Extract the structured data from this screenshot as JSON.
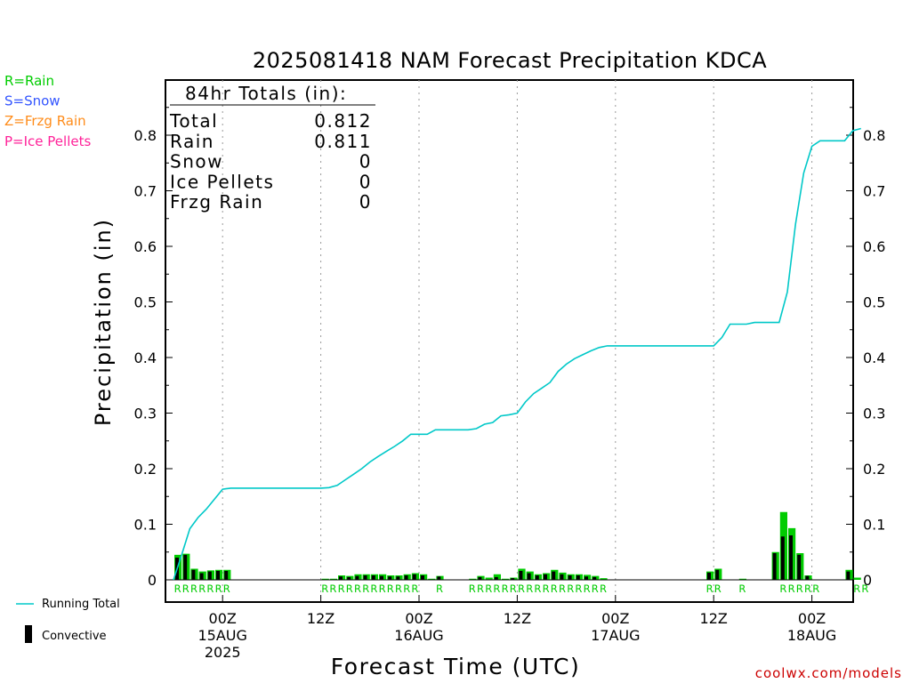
{
  "chart_data": {
    "type": "bar",
    "title": "2025081418 NAM Forecast Precipitation KDCA",
    "xlabel": "Forecast Time (UTC)",
    "ylabel": "Precipitation (in)",
    "ylim": [
      0,
      0.9
    ],
    "y_ticks": [
      "0",
      "0.1",
      "0.2",
      "0.3",
      "0.4",
      "0.5",
      "0.6",
      "0.7",
      "0.8"
    ],
    "x_unit": "forecast hour",
    "xlim": [
      0,
      84
    ],
    "x_ticks": [
      {
        "hour": 6,
        "lines": [
          "00Z",
          "15AUG",
          "2025"
        ]
      },
      {
        "hour": 18,
        "lines": [
          "12Z"
        ]
      },
      {
        "hour": 30,
        "lines": [
          "00Z",
          "16AUG"
        ]
      },
      {
        "hour": 42,
        "lines": [
          "12Z"
        ]
      },
      {
        "hour": 54,
        "lines": [
          "00Z",
          "17AUG"
        ]
      },
      {
        "hour": 66,
        "lines": [
          "12Z"
        ]
      },
      {
        "hour": 78,
        "lines": [
          "00Z",
          "18AUG"
        ]
      }
    ],
    "legend_types": [
      {
        "label": "R=Rain",
        "color": "#00cc00"
      },
      {
        "label": "S=Snow",
        "color": "#3355ff"
      },
      {
        "label": "Z=Frzg Rain",
        "color": "#ff8c1a"
      },
      {
        "label": "P=Ice Pellets",
        "color": "#ff2299"
      }
    ],
    "legend_lines": [
      {
        "label": "Running Total",
        "color": "#00c8c8"
      },
      {
        "label": "Convective",
        "color": "#000000"
      }
    ],
    "totals_box": {
      "heading": "84hr Totals (in):",
      "rows": [
        {
          "label": "Total",
          "value": "0.812"
        },
        {
          "label": "Rain",
          "value": "0.811"
        },
        {
          "label": "Snow",
          "value": "0"
        },
        {
          "label": "Ice Pellets",
          "value": "0"
        },
        {
          "label": "Frzg Rain",
          "value": "0"
        }
      ]
    },
    "series": [
      {
        "name": "Running Total",
        "kind": "line",
        "x": [
          0,
          1,
          2,
          3,
          4,
          5,
          6,
          7,
          8,
          9,
          12,
          15,
          17,
          18,
          19,
          20,
          21,
          22,
          23,
          24,
          25,
          26,
          27,
          28,
          29,
          30,
          31,
          32,
          33,
          34,
          35,
          36,
          37,
          38,
          39,
          40,
          41,
          42,
          43,
          44,
          45,
          46,
          47,
          48,
          49,
          50,
          51,
          52,
          53,
          54,
          55,
          56,
          57,
          58,
          59,
          60,
          61,
          62,
          63,
          64,
          65,
          66,
          67,
          68,
          69,
          70,
          71,
          72,
          73,
          74,
          75,
          76,
          77,
          78,
          79,
          80,
          81,
          82,
          83,
          84
        ],
        "values": [
          0,
          0.045,
          0.092,
          0.112,
          0.127,
          0.145,
          0.163,
          0.165,
          0.165,
          0.165,
          0.165,
          0.165,
          0.165,
          0.165,
          0.166,
          0.17,
          0.18,
          0.19,
          0.2,
          0.212,
          0.222,
          0.231,
          0.24,
          0.25,
          0.262,
          0.262,
          0.262,
          0.27,
          0.27,
          0.27,
          0.27,
          0.27,
          0.272,
          0.28,
          0.283,
          0.295,
          0.297,
          0.3,
          0.32,
          0.335,
          0.345,
          0.355,
          0.375,
          0.388,
          0.398,
          0.405,
          0.412,
          0.418,
          0.421,
          0.421,
          0.421,
          0.421,
          0.421,
          0.421,
          0.421,
          0.421,
          0.421,
          0.421,
          0.421,
          0.421,
          0.421,
          0.421,
          0.436,
          0.46,
          0.46,
          0.46,
          0.463,
          0.463,
          0.463,
          0.463,
          0.518,
          0.64,
          0.732,
          0.78,
          0.79,
          0.79,
          0.79,
          0.79,
          0.808,
          0.812
        ]
      },
      {
        "name": "Rain",
        "kind": "bar",
        "x": [
          1,
          2,
          3,
          4,
          5,
          6,
          7,
          19,
          20,
          21,
          22,
          23,
          24,
          25,
          26,
          27,
          28,
          29,
          30,
          31,
          32,
          33,
          37,
          38,
          39,
          40,
          41,
          42,
          43,
          44,
          45,
          46,
          47,
          48,
          49,
          50,
          51,
          52,
          53,
          66,
          67,
          70,
          74,
          75,
          76,
          77,
          78,
          83,
          84
        ],
        "values": [
          0.045,
          0.047,
          0.02,
          0.015,
          0.017,
          0.018,
          0.018,
          0.002,
          0.002,
          0.008,
          0.007,
          0.01,
          0.01,
          0.01,
          0.01,
          0.008,
          0.008,
          0.01,
          0.012,
          0.01,
          0.002,
          0.007,
          0.002,
          0.007,
          0.004,
          0.01,
          0.002,
          0.004,
          0.02,
          0.015,
          0.01,
          0.012,
          0.018,
          0.013,
          0.01,
          0.01,
          0.009,
          0.007,
          0.003,
          0.015,
          0.02,
          0.002,
          0.05,
          0.122,
          0.093,
          0.048,
          0.008,
          0.018,
          0.004
        ]
      },
      {
        "name": "Convective",
        "kind": "bar",
        "x": [
          1,
          2,
          3,
          4,
          5,
          6,
          7,
          21,
          22,
          23,
          24,
          25,
          26,
          27,
          28,
          29,
          30,
          31,
          33,
          38,
          40,
          42,
          43,
          44,
          45,
          46,
          47,
          48,
          49,
          50,
          51,
          52,
          66,
          67,
          74,
          75,
          76,
          77,
          78,
          83
        ],
        "values": [
          0.04,
          0.045,
          0.018,
          0.012,
          0.015,
          0.016,
          0.016,
          0.006,
          0.005,
          0.007,
          0.008,
          0.008,
          0.007,
          0.006,
          0.006,
          0.008,
          0.01,
          0.008,
          0.006,
          0.005,
          0.005,
          0.003,
          0.016,
          0.012,
          0.008,
          0.01,
          0.015,
          0.01,
          0.008,
          0.008,
          0.006,
          0.005,
          0.013,
          0.018,
          0.048,
          0.078,
          0.08,
          0.045,
          0.007,
          0.015
        ]
      }
    ],
    "type_markers": {
      "color": "#00cc00",
      "x": [
        1,
        2,
        3,
        4,
        5,
        6,
        7,
        19,
        20,
        21,
        22,
        23,
        24,
        25,
        26,
        27,
        28,
        29,
        30,
        33,
        37,
        38,
        39,
        40,
        41,
        42,
        43,
        44,
        45,
        46,
        47,
        48,
        49,
        50,
        51,
        52,
        53,
        66,
        67,
        70,
        75,
        76,
        77,
        78,
        79,
        84,
        85
      ],
      "symbol": "R"
    }
  },
  "credit": "coolwx.com/models"
}
